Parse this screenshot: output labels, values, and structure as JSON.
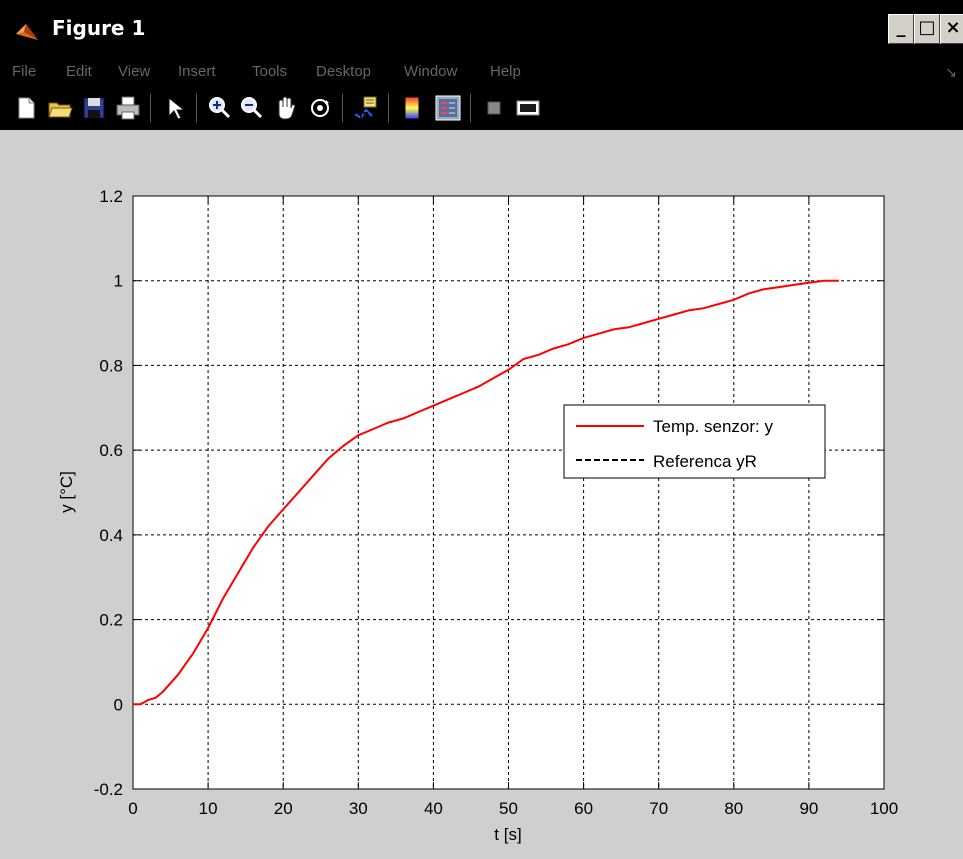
{
  "window": {
    "title": "Figure 1",
    "controls": {
      "minimize": "_",
      "maximize": "□",
      "close": "×"
    }
  },
  "menu": {
    "items": [
      "File",
      "Edit",
      "View",
      "Insert",
      "Tools",
      "Desktop",
      "Window",
      "Help"
    ],
    "overflow_glyph": "↘"
  },
  "toolbar": {
    "buttons": [
      "new-figure-icon",
      "open-file-icon",
      "save-icon",
      "print-icon",
      "edit-plot-arrow-icon",
      "zoom-in-icon",
      "zoom-out-icon",
      "pan-hand-icon",
      "rotate-3d-icon",
      "data-cursor-icon",
      "colorbar-icon",
      "legend-icon",
      "hide-plot-tools-icon",
      "show-plot-tools-icon"
    ]
  },
  "colors": {
    "titlebar": "#000000",
    "menu_text": "#5f6b60",
    "window_bg": "#cfcfcf",
    "axes_bg": "#ffffff",
    "series1": "#ff0000",
    "series2": "#000000"
  },
  "chart_data": {
    "type": "line",
    "title": "",
    "xlabel": "t [s]",
    "ylabel": "y [°C]",
    "xlim": [
      0,
      100
    ],
    "ylim": [
      -0.2,
      1.2
    ],
    "xticks": [
      "0",
      "10",
      "20",
      "30",
      "40",
      "50",
      "60",
      "70",
      "80",
      "90",
      "100"
    ],
    "yticks": [
      "-0.2",
      "0",
      "0.2",
      "0.4",
      "0.6",
      "0.8",
      "1",
      "1.2"
    ],
    "grid": true,
    "legend_position": "right",
    "series": [
      {
        "name": "Temp. senzor: y",
        "color": "#ff0000",
        "style": "solid",
        "x": [
          0,
          1,
          2,
          3,
          4,
          6,
          8,
          10,
          12,
          14,
          16,
          18,
          20,
          22,
          24,
          26,
          28,
          30,
          32,
          34,
          36,
          38,
          40,
          42,
          44,
          46,
          48,
          50,
          52,
          54,
          56,
          58,
          60,
          62,
          64,
          66,
          68,
          70,
          72,
          74,
          76,
          78,
          80,
          82,
          84,
          86,
          88,
          90,
          92,
          94
        ],
        "y": [
          0,
          0,
          0.01,
          0.015,
          0.03,
          0.07,
          0.12,
          0.18,
          0.25,
          0.31,
          0.37,
          0.42,
          0.46,
          0.5,
          0.54,
          0.58,
          0.61,
          0.635,
          0.65,
          0.665,
          0.675,
          0.69,
          0.705,
          0.72,
          0.735,
          0.75,
          0.77,
          0.79,
          0.815,
          0.825,
          0.84,
          0.85,
          0.865,
          0.875,
          0.885,
          0.89,
          0.9,
          0.91,
          0.92,
          0.93,
          0.935,
          0.945,
          0.955,
          0.97,
          0.98,
          0.985,
          0.99,
          0.995,
          1.0,
          1.0
        ]
      },
      {
        "name": "Referenca yR",
        "color": "#000000",
        "style": "dashed",
        "x": [],
        "y": []
      }
    ]
  }
}
